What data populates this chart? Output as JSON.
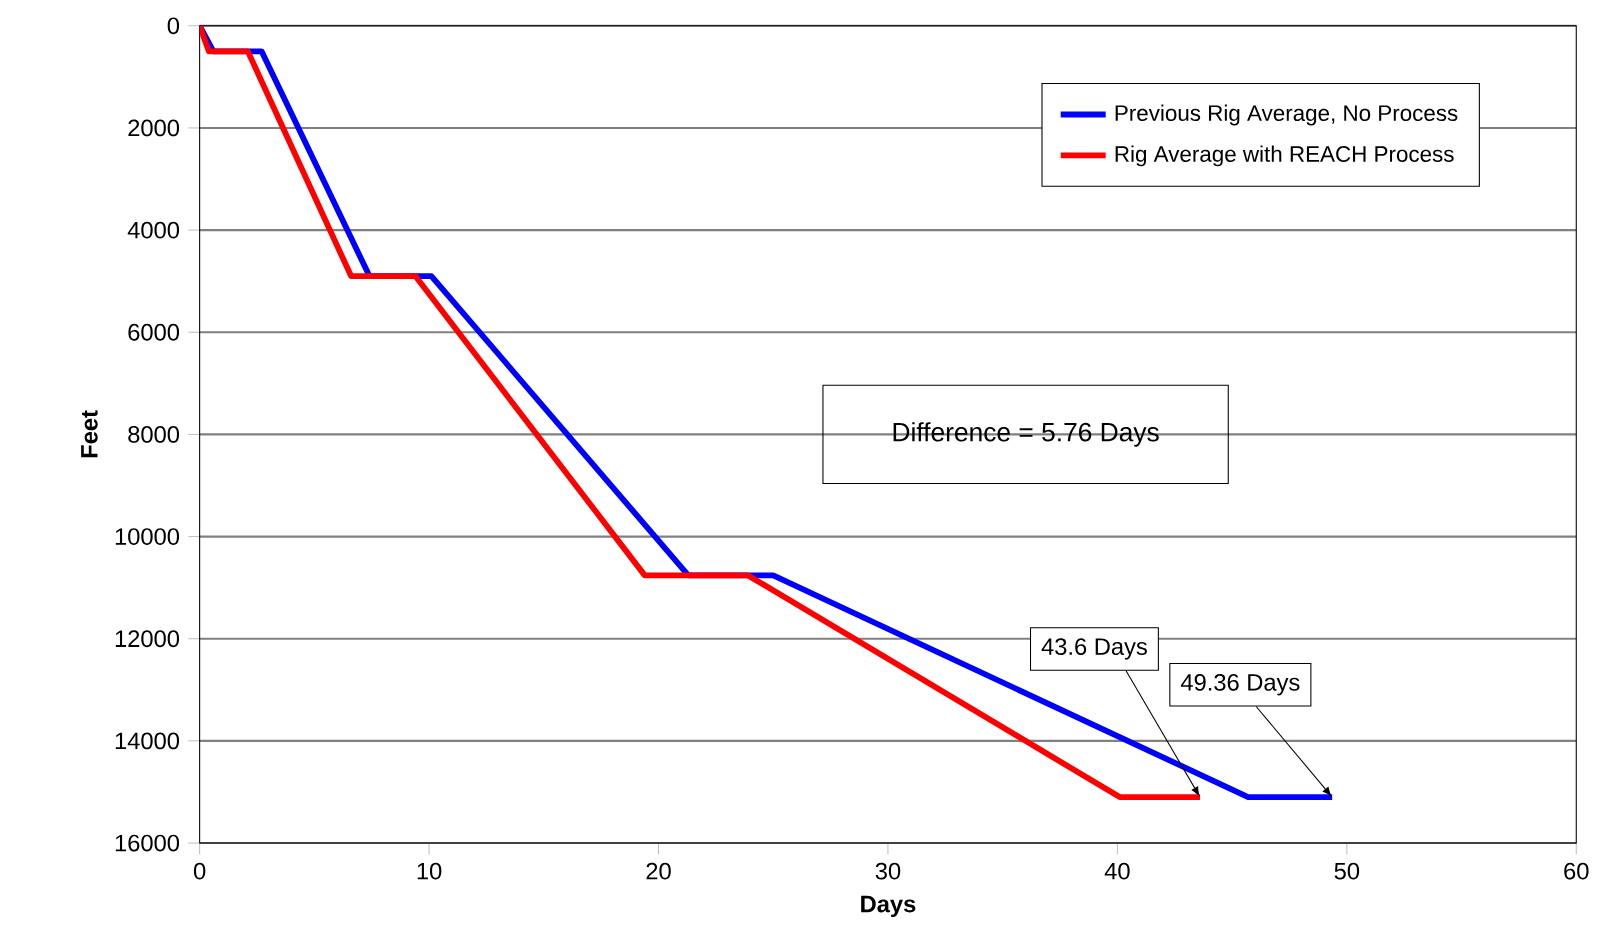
{
  "chart_data": {
    "type": "line",
    "xlabel": "Days",
    "ylabel": "Feet",
    "series": [
      {
        "name": "Previous Rig Average, No Process",
        "color": "#0000ff",
        "x": [
          0,
          0.6,
          2.7,
          7.4,
          10.1,
          21.3,
          25.0,
          45.7,
          49.36
        ],
        "values": [
          0,
          500,
          500,
          4900,
          4900,
          10760,
          10760,
          15100,
          15100
        ]
      },
      {
        "name": "Rig Average with REACH Process",
        "color": "#ff0000",
        "x": [
          0,
          0.4,
          2.1,
          6.6,
          9.4,
          19.4,
          23.9,
          40.1,
          43.6
        ],
        "values": [
          0,
          500,
          500,
          4900,
          4900,
          10760,
          10760,
          15100,
          15100
        ]
      }
    ],
    "xlim": [
      0,
      60
    ],
    "xticks": [
      0,
      10,
      20,
      30,
      40,
      50,
      60
    ],
    "ylim": [
      16000,
      0
    ],
    "yticks": [
      0,
      2000,
      4000,
      6000,
      8000,
      10000,
      12000,
      14000,
      16000
    ],
    "grid": "y",
    "legend": "top right",
    "marker": "none",
    "line_style": "solid",
    "annotations": [
      "Difference = 5.76 Days",
      {
        "text": "43.6 Days",
        "x": 43.6,
        "y": 15100
      },
      {
        "text": "49.36 Days",
        "x": 49.36,
        "y": 15100
      }
    ]
  }
}
